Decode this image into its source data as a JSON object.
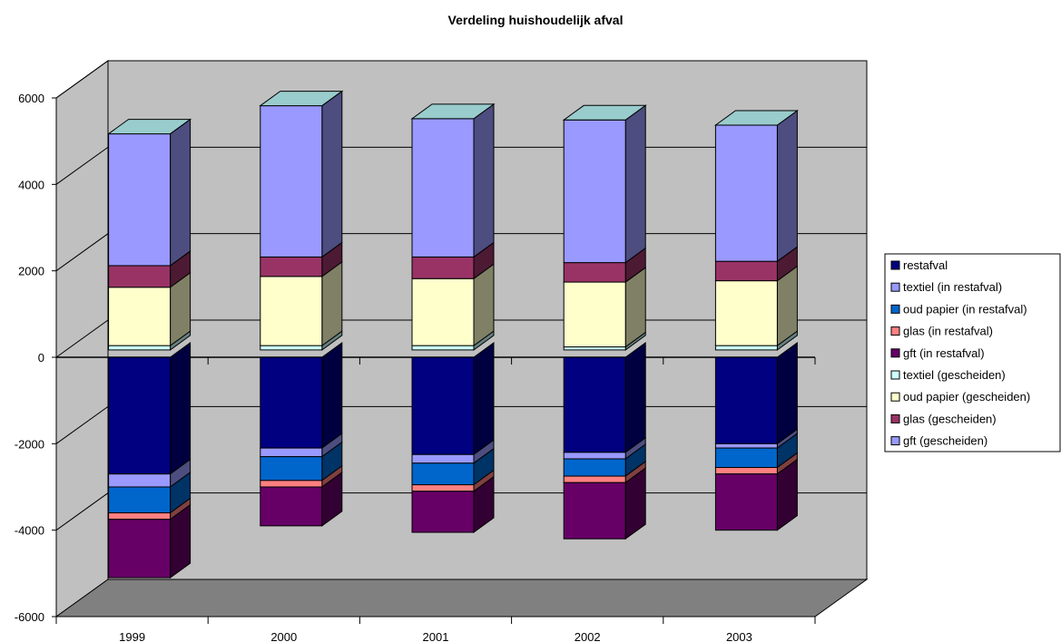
{
  "chart_data": {
    "type": "bar",
    "variant": "3d-stacked-column",
    "title": "Verdeling huishoudelijk afval",
    "xlabel": "",
    "ylabel": "",
    "categories": [
      "1999",
      "2000",
      "2001",
      "2002",
      "2003"
    ],
    "ylim": [
      -6000,
      6000
    ],
    "yticks": [
      "6000",
      "4000",
      "2000",
      "0",
      "-2000",
      "-4000",
      "-6000"
    ],
    "grid": true,
    "legend_position": "right",
    "series": [
      {
        "name": "restafval",
        "color": "#000080",
        "values": [
          -2700,
          -2100,
          -2250,
          -2200,
          -2000
        ]
      },
      {
        "name": "textiel (in restafval)",
        "color": "#9999ff",
        "values": [
          -300,
          -200,
          -200,
          -150,
          -100
        ]
      },
      {
        "name": "oud papier (in restafval)",
        "color": "#0066cc",
        "values": [
          -600,
          -550,
          -500,
          -400,
          -450
        ]
      },
      {
        "name": "glas (in restafval)",
        "color": "#ff8080",
        "values": [
          -150,
          -150,
          -150,
          -150,
          -150
        ]
      },
      {
        "name": "gft (in restafval)",
        "color": "#660066",
        "values": [
          -1350,
          -900,
          -950,
          -1300,
          -1300
        ]
      },
      {
        "name": "textiel (gescheiden)",
        "color": "#ccffff",
        "values": [
          100,
          100,
          100,
          70,
          100
        ]
      },
      {
        "name": "oud papier (gescheiden)",
        "color": "#ffffcc",
        "values": [
          1350,
          1600,
          1550,
          1500,
          1500
        ]
      },
      {
        "name": "glas (gescheiden)",
        "color": "#993366",
        "values": [
          500,
          450,
          500,
          450,
          450
        ]
      },
      {
        "name": "gft (gescheiden)",
        "color": "#9999ff",
        "values": [
          3050,
          3500,
          3200,
          3300,
          3150
        ]
      }
    ]
  }
}
